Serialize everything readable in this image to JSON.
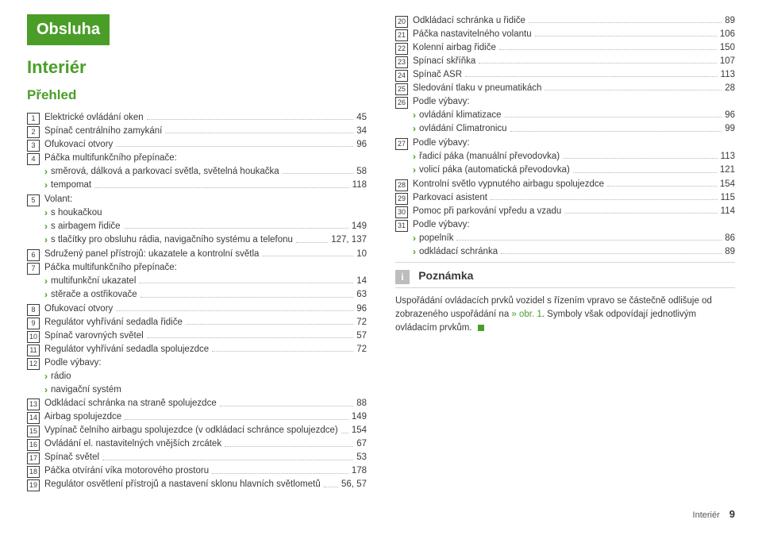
{
  "accent_color": "#4a9e28",
  "titles": {
    "t1": "Obsluha",
    "t2": "Interiér",
    "t3": "Přehled"
  },
  "left_items": [
    {
      "num": "1",
      "label": "Elektrické ovládání oken",
      "page": "45"
    },
    {
      "num": "2",
      "label": "Spínač centrálního zamykání",
      "page": "34"
    },
    {
      "num": "3",
      "label": "Ofukovací otvory",
      "page": "96"
    },
    {
      "num": "4",
      "label": "Páčka multifunkčního přepínače:",
      "page": ""
    },
    {
      "sub": true,
      "label": "směrová, dálková a parkovací světla, světelná houkačka",
      "page": "58"
    },
    {
      "sub": true,
      "label": "tempomat",
      "page": "118"
    },
    {
      "num": "5",
      "label": "Volant:",
      "page": ""
    },
    {
      "sub": true,
      "label": "s houkačkou",
      "page": ""
    },
    {
      "sub": true,
      "label": "s airbagem řidiče",
      "page": "149"
    },
    {
      "sub": true,
      "label": "s tlačítky pro obsluhu rádia, navigačního systému a telefonu",
      "page": "127, 137"
    },
    {
      "num": "6",
      "label": "Sdružený panel přístrojů: ukazatele a kontrolní světla",
      "page": "10"
    },
    {
      "num": "7",
      "label": "Páčka multifunkčního přepínače:",
      "page": ""
    },
    {
      "sub": true,
      "label": "multifunkční ukazatel",
      "page": "14"
    },
    {
      "sub": true,
      "label": "stěrače a ostřikovače",
      "page": "63"
    },
    {
      "num": "8",
      "label": "Ofukovací otvory",
      "page": "96"
    },
    {
      "num": "9",
      "label": "Regulátor vyhřívání sedadla řidiče",
      "page": "72"
    },
    {
      "num": "10",
      "label": "Spínač varovných světel",
      "page": "57"
    },
    {
      "num": "11",
      "label": "Regulátor vyhřívání sedadla spolujezdce",
      "page": "72"
    },
    {
      "num": "12",
      "label": "Podle výbavy:",
      "page": ""
    },
    {
      "sub": true,
      "label": "rádio",
      "page": ""
    },
    {
      "sub": true,
      "label": "navigační systém",
      "page": ""
    },
    {
      "num": "13",
      "label": "Odkládací schránka na straně spolujezdce",
      "page": "88"
    },
    {
      "num": "14",
      "label": "Airbag spolujezdce",
      "page": "149"
    },
    {
      "num": "15",
      "label": "Vypínač čelního airbagu spolujezdce (v odkládací schránce spolujezdce)",
      "page": "154"
    },
    {
      "num": "16",
      "label": "Ovládání el. nastavitelných vnějších zrcátek",
      "page": "67"
    },
    {
      "num": "17",
      "label": "Spínač světel",
      "page": "53"
    },
    {
      "num": "18",
      "label": "Páčka otvírání víka motorového prostoru",
      "page": "178"
    },
    {
      "num": "19",
      "label": "Regulátor osvětlení přístrojů a nastavení sklonu hlavních světlometů",
      "page": "56, 57"
    }
  ],
  "right_items": [
    {
      "num": "20",
      "label": "Odkládací schránka u řidiče",
      "page": "89"
    },
    {
      "num": "21",
      "label": "Páčka nastavitelného volantu",
      "page": "106"
    },
    {
      "num": "22",
      "label": "Kolenní airbag řidiče",
      "page": "150"
    },
    {
      "num": "23",
      "label": "Spínací skříňka",
      "page": "107"
    },
    {
      "num": "24",
      "label": "Spínač ASR",
      "page": "113"
    },
    {
      "num": "25",
      "label": "Sledování tlaku v pneumatikách",
      "page": "28"
    },
    {
      "num": "26",
      "label": "Podle výbavy:",
      "page": ""
    },
    {
      "sub": true,
      "label": "ovládání klimatizace",
      "page": "96"
    },
    {
      "sub": true,
      "label": "ovládání Climatronicu",
      "page": "99"
    },
    {
      "num": "27",
      "label": "Podle výbavy:",
      "page": ""
    },
    {
      "sub": true,
      "label": "řadicí páka (manuální převodovka)",
      "page": "113"
    },
    {
      "sub": true,
      "label": "volicí páka (automatická převodovka)",
      "page": "121"
    },
    {
      "num": "28",
      "label": "Kontrolní světlo vypnutého airbagu spolujezdce",
      "page": "154"
    },
    {
      "num": "29",
      "label": "Parkovací asistent",
      "page": "115"
    },
    {
      "num": "30",
      "label": "Pomoc při parkování vpředu a vzadu",
      "page": "114"
    },
    {
      "num": "31",
      "label": "Podle výbavy:",
      "page": ""
    },
    {
      "sub": true,
      "label": "popelník",
      "page": "86"
    },
    {
      "sub": true,
      "label": "odkládací schránka",
      "page": "89"
    }
  ],
  "note": {
    "badge": "i",
    "title": "Poznámka",
    "body_pre": "Uspořádání ovládacích prvků vozidel s řízením vpravo se částečně odlišuje od zobrazeného uspořádání na ",
    "ref": "» obr. 1",
    "body_post": ". Symboly však odpovídají jednotlivým ovládacím prvkům."
  },
  "footer": {
    "section": "Interiér",
    "page": "9"
  }
}
